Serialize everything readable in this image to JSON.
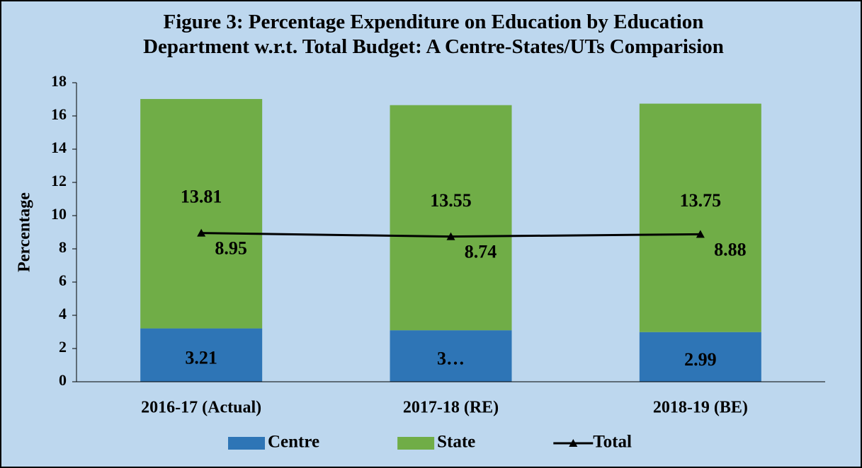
{
  "chart_data": {
    "type": "bar",
    "title": "Figure 3: Percentage Expenditure on Education by Education Department w.r.t. Total Budget: A Centre-States/UTs Comparision",
    "ylabel": "Percentage",
    "categories": [
      "2016-17 (Actual)",
      "2017-18 (RE)",
      "2018-19 (BE)"
    ],
    "series": [
      {
        "name": "Centre",
        "color": "#2e75b6",
        "values": [
          3.21,
          3.1,
          2.99
        ],
        "value_labels": [
          "3.21",
          "3…",
          "2.99"
        ]
      },
      {
        "name": "State",
        "color": "#70ad47",
        "values": [
          13.81,
          13.55,
          13.75
        ]
      },
      {
        "name": "Total",
        "type": "line",
        "color": "#000000",
        "values": [
          8.95,
          8.74,
          8.88
        ]
      }
    ],
    "ylim": [
      0,
      18
    ],
    "yticks": [
      0,
      2,
      4,
      6,
      8,
      10,
      12,
      14,
      16,
      18
    ],
    "grid": false,
    "legend": "bottom"
  }
}
